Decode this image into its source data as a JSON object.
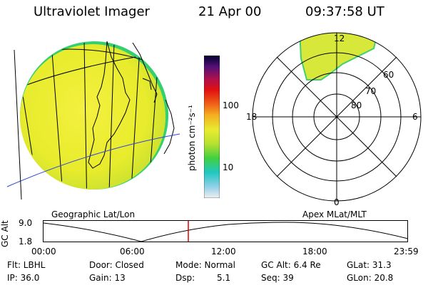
{
  "header": {
    "instrument": "Ultraviolet Imager",
    "date": "21 Apr 00",
    "time": "09:37:58 UT"
  },
  "colorbar": {
    "unit_label": "photon cm⁻²s⁻¹",
    "ticks": [
      "100",
      "10"
    ]
  },
  "polar_plot": {
    "labels": {
      "top": "12",
      "left": "18",
      "right": "6",
      "bottom": "0"
    },
    "lat_labels": [
      "60",
      "70",
      "80"
    ]
  },
  "timeline": {
    "left_title": "Geographic Lat/Lon",
    "right_title": "Apex MLat/MLT",
    "y_axis_label": "GC Alt",
    "y_ticks": [
      "9.0",
      "1.8"
    ],
    "x_ticks": [
      "00:00",
      "06:00",
      "12:00",
      "18:00",
      "23:59"
    ],
    "current_time_marker": "09:37:58"
  },
  "status": {
    "row1": {
      "flt": "Flt: LBHL",
      "door": "Door: Closed",
      "mode": "Mode: Normal",
      "gc_alt": "GC Alt: 6.4 Re",
      "glat": "GLat:  31.3"
    },
    "row2": {
      "ip": "IP: 36.0",
      "gain": "Gain: 13",
      "dsp": "Dsp:",
      "dsp_value": "5.1",
      "seq": "Seq: 39",
      "glon": "GLon:  20.8"
    }
  },
  "colors": {
    "earth_fill": "#e6ec2a",
    "earth_edge": "#2ecc60",
    "grid": "#000000",
    "blue_line": "#3344dd",
    "marker": "#e00000"
  }
}
